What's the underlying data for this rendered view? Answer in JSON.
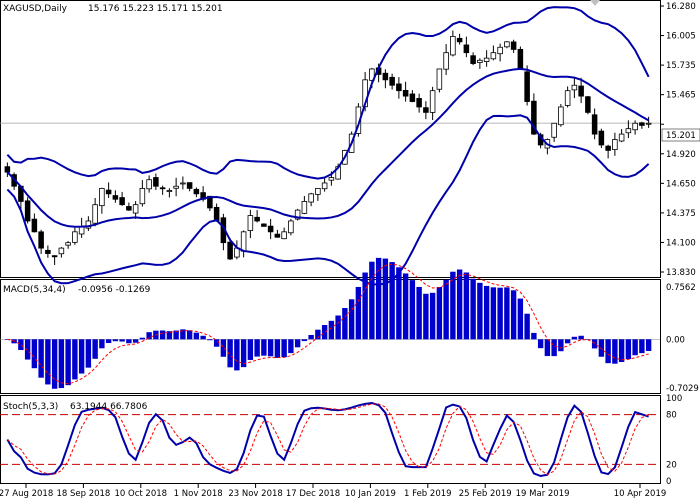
{
  "chart_header": {
    "symbol": "XAGUSD,Daily",
    "ohlc": "15.176 15.223 15.171 15.201"
  },
  "last_price_label": "15.201",
  "price_axis_labels": [
    "16.280",
    "16.005",
    "15.735",
    "15.465",
    "15.201",
    "14.920",
    "14.650",
    "14.375",
    "14.100",
    "13.830"
  ],
  "macd_header": {
    "title": "MACD(5,34,4)",
    "values": "-0.0956 -0.1269"
  },
  "macd_axis_labels": [
    "0.7562",
    "0.00",
    "-0.7029"
  ],
  "stoch_header": {
    "title": "Stoch(5,3,3)",
    "values": "63.1944 66.7806"
  },
  "stoch_axis_labels": [
    "100",
    "80",
    "20",
    "0"
  ],
  "date_labels": [
    "27 Aug 2018",
    "18 Sep 2018",
    "10 Oct 2018",
    "1 Nov 2018",
    "23 Nov 2018",
    "17 Dec 2018",
    "10 Jan 2019",
    "1 Feb 2019",
    "25 Feb 2019",
    "19 Mar 2019",
    "10 Apr 2019"
  ],
  "colors": {
    "candle": "#000000",
    "band": "#0000aa",
    "macd_hist": "#0000cc",
    "signal": "#ff0000",
    "stoch_main": "#0000aa",
    "stoch_signal": "#ff0000",
    "level_line": "#cc0000"
  },
  "chart_data": [
    {
      "type": "candlestick",
      "title": "XAGUSD,Daily",
      "ylim": [
        13.83,
        16.28
      ],
      "x_range": [
        "27 Aug 2018",
        "10 Apr 2019"
      ],
      "indicators": [
        "Bollinger Bands"
      ],
      "approx_close_series": [
        14.75,
        14.62,
        14.48,
        14.3,
        14.2,
        14.05,
        14.0,
        13.97,
        14.05,
        14.1,
        14.2,
        14.25,
        14.3,
        14.45,
        14.6,
        14.55,
        14.5,
        14.45,
        14.4,
        14.45,
        14.6,
        14.68,
        14.62,
        14.6,
        14.58,
        14.62,
        14.65,
        14.6,
        14.55,
        14.5,
        14.42,
        14.3,
        14.1,
        13.95,
        14.05,
        14.2,
        14.35,
        14.3,
        14.25,
        14.2,
        14.15,
        14.2,
        14.3,
        14.4,
        14.48,
        14.55,
        14.6,
        14.65,
        14.7,
        14.8,
        14.95,
        15.1,
        15.35,
        15.6,
        15.7,
        15.65,
        15.6,
        15.55,
        15.5,
        15.45,
        15.4,
        15.35,
        15.3,
        15.5,
        15.7,
        15.85,
        16.0,
        15.95,
        15.85,
        15.75,
        15.78,
        15.8,
        15.85,
        15.9,
        15.95,
        15.88,
        15.7,
        15.4,
        15.1,
        15.0,
        15.05,
        15.2,
        15.35,
        15.5,
        15.55,
        15.45,
        15.3,
        15.1,
        15.0,
        14.95,
        15.05,
        15.1,
        15.15,
        15.2,
        15.18,
        15.2
      ]
    },
    {
      "type": "bar",
      "title": "MACD(5,34,4)",
      "ylim": [
        -0.7029,
        0.7562
      ],
      "values_summary": {
        "macd": -0.0956,
        "signal": -0.1269
      }
    },
    {
      "type": "line",
      "title": "Stoch(5,3,3)",
      "ylim": [
        0,
        100
      ],
      "levels": [
        20,
        80
      ],
      "values_summary": {
        "main": 63.1944,
        "signal": 66.7806
      }
    }
  ]
}
